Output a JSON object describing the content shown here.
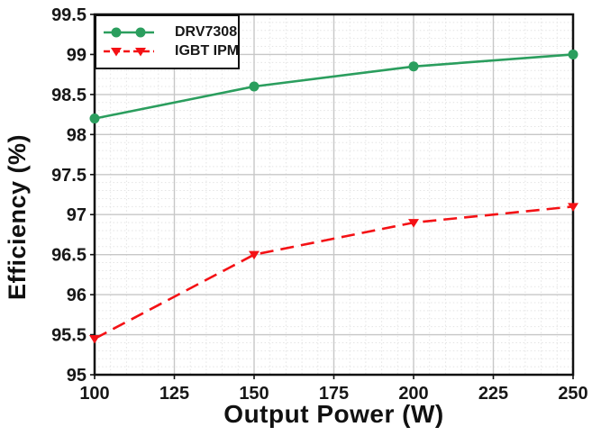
{
  "chart_data": {
    "type": "line",
    "xlabel": "Output Power (W)",
    "ylabel": "Efficiency (%)",
    "x": [
      100,
      150,
      200,
      250
    ],
    "series": [
      {
        "name": "DRV7308",
        "values": [
          98.2,
          98.6,
          98.85,
          99.0
        ],
        "color": "#2b9e5e",
        "marker": "circle",
        "line_style": "solid"
      },
      {
        "name": "IGBT IPM",
        "values": [
          95.45,
          96.5,
          96.9,
          97.1
        ],
        "color": "#f41115",
        "marker": "triangle-down",
        "line_style": "dashed"
      }
    ],
    "xlim": [
      100,
      250
    ],
    "ylim": [
      95,
      99.5
    ],
    "x_ticks": [
      "100",
      "125",
      "150",
      "175",
      "200",
      "225",
      "250"
    ],
    "y_ticks": [
      "95",
      "95.5",
      "96",
      "96.5",
      "97",
      "97.5",
      "98",
      "98.5",
      "99",
      "99.5"
    ],
    "x_minor_step": 5,
    "y_minor_step": 0.1,
    "grid": {
      "major": "solid",
      "minor": "dotted"
    },
    "legend_position": "top-left",
    "frame_color": "#111111",
    "text_color": "#171717"
  }
}
